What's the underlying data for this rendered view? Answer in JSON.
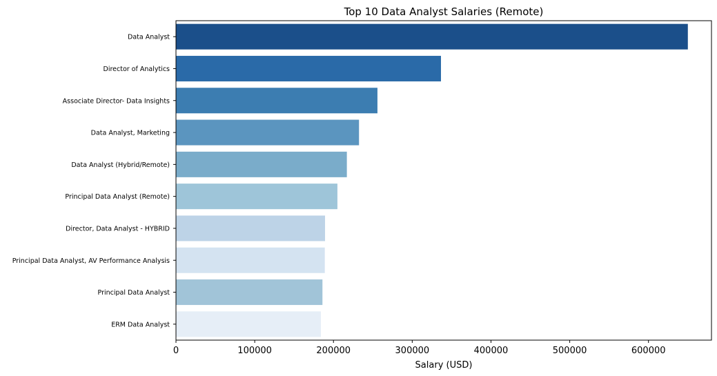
{
  "chart_data": {
    "type": "bar",
    "orientation": "horizontal",
    "title": "Top 10 Data Analyst Salaries (Remote)",
    "xlabel": "Salary (USD)",
    "ylabel": "",
    "xlim": [
      0,
      680000
    ],
    "x_ticks": [
      0,
      100000,
      200000,
      300000,
      400000,
      500000,
      600000
    ],
    "x_tick_labels": [
      "0",
      "100000",
      "200000",
      "300000",
      "400000",
      "500000",
      "600000"
    ],
    "grid": false,
    "categories": [
      "Data Analyst",
      "Director of Analytics",
      "Associate Director- Data Insights",
      "Data Analyst, Marketing",
      "Data Analyst (Hybrid/Remote)",
      "Principal Data Analyst (Remote)",
      "Director, Data Analyst - HYBRID",
      "Principal Data Analyst, AV Performance Analysis",
      "Principal Data Analyst",
      "ERM Data Analyst"
    ],
    "values": [
      650000,
      336500,
      255830,
      232423,
      217000,
      205000,
      189309,
      189000,
      186000,
      184000
    ],
    "colors": [
      "#1b4f8a",
      "#2a6aa8",
      "#3c7db1",
      "#5b95bf",
      "#7aacca",
      "#9ec5d9",
      "#bdd3e7",
      "#d4e3f1",
      "#a1c4d8",
      "#e6eef7"
    ]
  }
}
